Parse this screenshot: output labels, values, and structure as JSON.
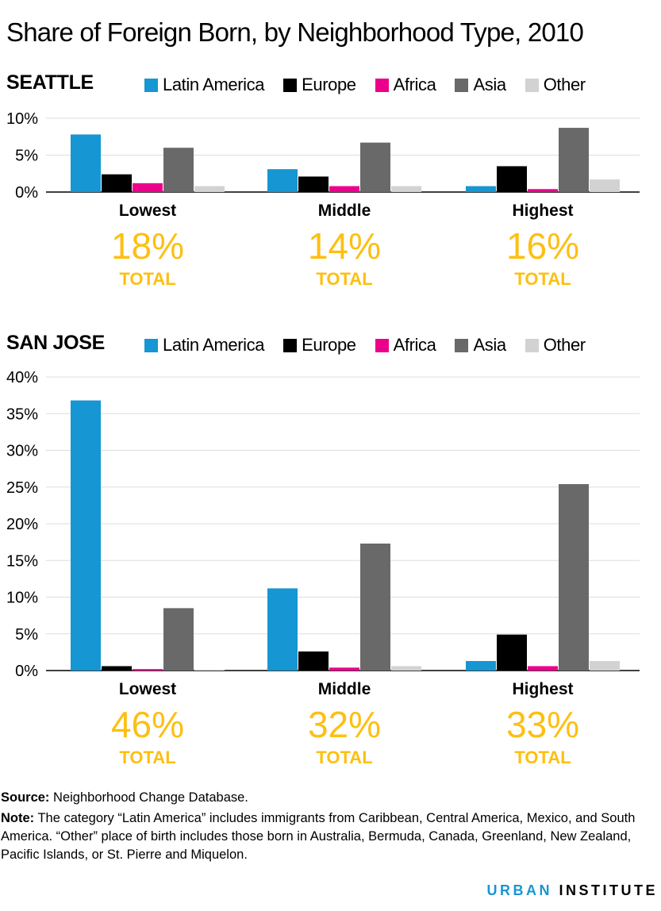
{
  "title": "Share of Foreign Born, by Neighborhood Type, 2010",
  "legend": [
    {
      "label": "Latin America",
      "color": "#1696d2"
    },
    {
      "label": "Europe",
      "color": "#000000"
    },
    {
      "label": "Africa",
      "color": "#ec008b"
    },
    {
      "label": "Asia",
      "color": "#696969"
    },
    {
      "label": "Other",
      "color": "#d2d2d2"
    }
  ],
  "total_word": "TOTAL",
  "chart_data": [
    {
      "type": "bar",
      "title": "SEATTLE",
      "categories": [
        "Lowest",
        "Middle",
        "Highest"
      ],
      "series": [
        {
          "name": "Latin America",
          "values": [
            7.8,
            3.1,
            0.8
          ]
        },
        {
          "name": "Europe",
          "values": [
            2.4,
            2.1,
            3.5
          ]
        },
        {
          "name": "Africa",
          "values": [
            1.2,
            0.8,
            0.4
          ]
        },
        {
          "name": "Asia",
          "values": [
            6.0,
            6.7,
            8.7
          ]
        },
        {
          "name": "Other",
          "values": [
            0.8,
            0.8,
            1.7
          ]
        }
      ],
      "ylim": [
        0,
        10
      ],
      "yticks": [
        0,
        5,
        10
      ],
      "ytick_labels": [
        "0%",
        "5%",
        "10%"
      ],
      "totals": [
        "18%",
        "14%",
        "16%"
      ],
      "legend_position": "top",
      "grid": true
    },
    {
      "type": "bar",
      "title": "SAN JOSE",
      "categories": [
        "Lowest",
        "Middle",
        "Highest"
      ],
      "series": [
        {
          "name": "Latin America",
          "values": [
            36.8,
            11.2,
            1.3
          ]
        },
        {
          "name": "Europe",
          "values": [
            0.6,
            2.6,
            4.9
          ]
        },
        {
          "name": "Africa",
          "values": [
            0.2,
            0.4,
            0.6
          ]
        },
        {
          "name": "Asia",
          "values": [
            8.5,
            17.3,
            25.4
          ]
        },
        {
          "name": "Other",
          "values": [
            0.1,
            0.6,
            1.3
          ]
        }
      ],
      "ylim": [
        0,
        40
      ],
      "yticks": [
        0,
        5,
        10,
        15,
        20,
        25,
        30,
        35,
        40
      ],
      "ytick_labels": [
        "0%",
        "5%",
        "10%",
        "15%",
        "20%",
        "25%",
        "30%",
        "35%",
        "40%"
      ],
      "totals": [
        "46%",
        "32%",
        "33%"
      ],
      "legend_position": "top",
      "grid": true
    }
  ],
  "footer": {
    "source_label": "Source:",
    "source_text": "Neighborhood Change Database.",
    "note_label": "Note:",
    "note_text": "The category “Latin America” includes immigrants from Caribbean, Central America, Mexico, and South America. “Other” place of birth includes those born in Australia, Bermuda, Canada, Greenland, New Zealand, Pacific Islands, or St. Pierre and Miquelon."
  },
  "brand": {
    "part1": "URBAN",
    "part2": "INSTITUTE"
  }
}
